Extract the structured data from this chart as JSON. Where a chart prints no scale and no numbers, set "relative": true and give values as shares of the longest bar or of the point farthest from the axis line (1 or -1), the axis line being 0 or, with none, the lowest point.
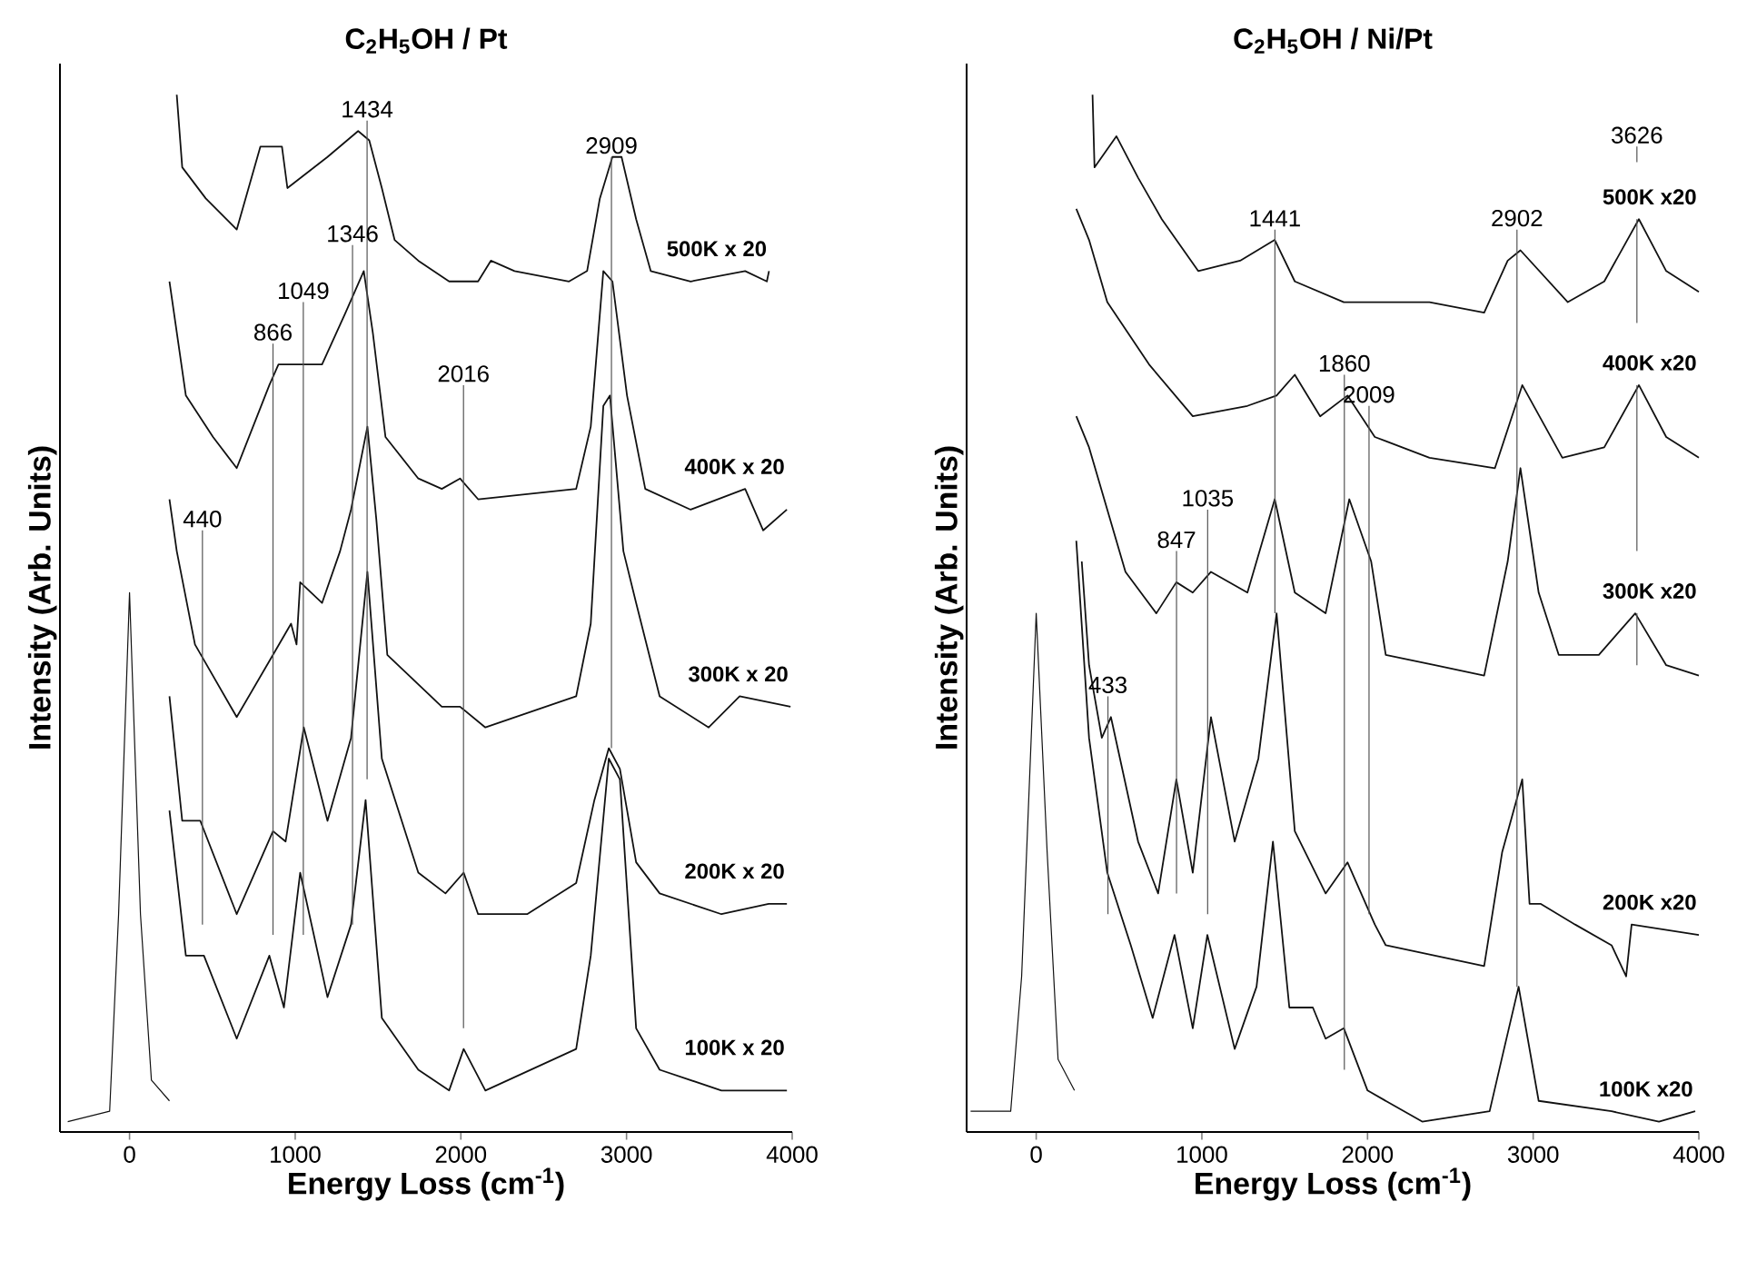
{
  "chart_data": [
    {
      "type": "line",
      "title": "C$_{2}$H$_{5}$OH / Pt",
      "xlabel": "Energy Loss (cm$^{-1}$)",
      "ylabel": "Intensity (Arb. Units)",
      "relative": true,
      "xlim": [
        -420,
        4000
      ],
      "xticks": [
        0,
        1000,
        2000,
        3000,
        4000
      ],
      "series": [
        {
          "name": "500K x 20",
          "color": "#111111",
          "x": [
            285,
            318,
            460,
            647,
            790,
            920,
            953,
            1195,
            1380,
            1447,
            1523,
            1600,
            1743,
            1929,
            2104,
            2181,
            2324,
            2653,
            2762,
            2839,
            2915,
            2970,
            3058,
            3146,
            3387,
            3716,
            3847,
            3860
          ],
          "values": [
            1.0,
            0.93,
            0.9,
            0.87,
            0.95,
            0.95,
            0.91,
            0.94,
            0.965,
            0.956,
            0.91,
            0.86,
            0.84,
            0.82,
            0.82,
            0.84,
            0.83,
            0.82,
            0.83,
            0.9,
            0.94,
            0.94,
            0.88,
            0.83,
            0.82,
            0.83,
            0.82,
            0.83
          ]
        },
        {
          "name": "400K x 20",
          "color": "#111111",
          "x": [
            241,
            340,
            504,
            647,
            844,
            899,
            1162,
            1304,
            1414,
            1469,
            1545,
            1743,
            1885,
            1995,
            2104,
            2696,
            2784,
            2860,
            2915,
            3003,
            3113,
            3387,
            3716,
            3825,
            3968
          ],
          "values": [
            0.82,
            0.71,
            0.67,
            0.64,
            0.72,
            0.74,
            0.74,
            0.79,
            0.83,
            0.77,
            0.67,
            0.63,
            0.62,
            0.63,
            0.61,
            0.62,
            0.68,
            0.83,
            0.82,
            0.71,
            0.62,
            0.6,
            0.62,
            0.58,
            0.6
          ]
        },
        {
          "name": "300K x 20",
          "color": "#111111",
          "x": [
            241,
            285,
            395,
            647,
            866,
            975,
            1008,
            1030,
            1162,
            1271,
            1337,
            1436,
            1490,
            1556,
            1885,
            1995,
            2148,
            2696,
            2784,
            2860,
            2900,
            2981,
            3058,
            3200,
            3496,
            3683,
            3990
          ],
          "values": [
            0.61,
            0.56,
            0.47,
            0.4,
            0.46,
            0.49,
            0.47,
            0.53,
            0.51,
            0.56,
            0.6,
            0.68,
            0.59,
            0.46,
            0.41,
            0.41,
            0.39,
            0.42,
            0.49,
            0.7,
            0.71,
            0.56,
            0.51,
            0.42,
            0.39,
            0.42,
            0.41
          ]
        },
        {
          "name": "200K x 20",
          "color": "#111111",
          "x": [
            241,
            318,
            427,
            647,
            866,
            942,
            1052,
            1195,
            1337,
            1436,
            1523,
            1743,
            1907,
            2017,
            2104,
            2400,
            2696,
            2806,
            2893,
            2960,
            3058,
            3200,
            3573,
            3858,
            3968
          ],
          "values": [
            0.42,
            0.3,
            0.3,
            0.21,
            0.29,
            0.28,
            0.39,
            0.3,
            0.38,
            0.54,
            0.36,
            0.25,
            0.23,
            0.25,
            0.21,
            0.21,
            0.24,
            0.32,
            0.37,
            0.35,
            0.26,
            0.23,
            0.21,
            0.22,
            0.22
          ]
        },
        {
          "name": "100K x 20",
          "color": "#111111",
          "x": [
            241,
            340,
            449,
            647,
            844,
            932,
            1030,
            1195,
            1337,
            1425,
            1523,
            1743,
            1929,
            2017,
            2148,
            2696,
            2784,
            2893,
            2960,
            3058,
            3200,
            3573,
            3968
          ],
          "values": [
            0.31,
            0.17,
            0.17,
            0.09,
            0.17,
            0.12,
            0.25,
            0.13,
            0.2,
            0.32,
            0.11,
            0.06,
            0.04,
            0.08,
            0.04,
            0.08,
            0.17,
            0.36,
            0.34,
            0.1,
            0.06,
            0.04,
            0.04
          ]
        },
        {
          "color": "#111111",
          "x": [
            -373,
            -120,
            -66,
            0,
            66,
            132,
            241
          ],
          "values": [
            0.01,
            0.02,
            0.21,
            0.52,
            0.21,
            0.05,
            0.03
          ]
        },
        {
          "color": "#555555",
          "x": [
            1434,
            1434
          ],
          "values": [
            0.975,
            0.34
          ]
        },
        {
          "color": "#555555",
          "x": [
            1346,
            1346
          ],
          "values": [
            0.855,
            0.2
          ]
        },
        {
          "color": "#555555",
          "x": [
            1049,
            1049
          ],
          "values": [
            0.8,
            0.19
          ]
        },
        {
          "color": "#555555",
          "x": [
            866,
            866
          ],
          "values": [
            0.76,
            0.19
          ]
        },
        {
          "color": "#555555",
          "x": [
            440,
            440
          ],
          "values": [
            0.58,
            0.2
          ]
        },
        {
          "color": "#555555",
          "x": [
            2016,
            2016
          ],
          "values": [
            0.72,
            0.1
          ]
        },
        {
          "color": "#555555",
          "x": [
            2909,
            2909
          ],
          "values": [
            0.94,
            0.37
          ]
        }
      ],
      "annotations": [
        {
          "text": "1434",
          "x": 1434,
          "y": 0.975
        },
        {
          "text": "1346",
          "x": 1346,
          "y": 0.855
        },
        {
          "text": "1049",
          "x": 1049,
          "y": 0.8
        },
        {
          "text": "866",
          "x": 866,
          "y": 0.76
        },
        {
          "text": "440",
          "x": 440,
          "y": 0.58
        },
        {
          "text": "2016",
          "x": 2016,
          "y": 0.72
        },
        {
          "text": "2909",
          "x": 2909,
          "y": 0.94
        }
      ]
    },
    {
      "type": "line",
      "title": "C$_{2}$H$_{5}$OH / Ni/Pt",
      "xlabel": "Energy Loss (cm$^{-1}$)",
      "ylabel": "Intensity (Arb. Units)",
      "relative": true,
      "xlim": [
        -420,
        4000
      ],
      "xticks": [
        0,
        1000,
        2000,
        3000,
        4000
      ],
      "series": [
        {
          "name": "500K x20",
          "color": "#111111",
          "x": [
            340,
            352,
            484,
            615,
            758,
            978,
            1231,
            1440,
            1561,
            1857,
            2374,
            2704,
            2846,
            2923,
            3209,
            3429,
            3638,
            3803,
            4000
          ],
          "values": [
            1.0,
            0.93,
            0.96,
            0.92,
            0.88,
            0.83,
            0.84,
            0.86,
            0.82,
            0.8,
            0.8,
            0.79,
            0.84,
            0.85,
            0.8,
            0.82,
            0.88,
            0.83,
            0.81
          ]
        },
        {
          "name": "400K x20",
          "color": "#111111",
          "x": [
            242,
            319,
            429,
            681,
            945,
            1275,
            1451,
            1561,
            1714,
            1879,
            2044,
            2374,
            2769,
            2934,
            3176,
            3429,
            3638,
            3803,
            4000
          ],
          "values": [
            0.89,
            0.86,
            0.8,
            0.74,
            0.69,
            0.7,
            0.71,
            0.73,
            0.69,
            0.71,
            0.67,
            0.65,
            0.64,
            0.72,
            0.65,
            0.66,
            0.72,
            0.67,
            0.65
          ]
        },
        {
          "name": "300K x20",
          "color": "#111111",
          "x": [
            242,
            319,
            539,
            725,
            846,
            945,
            1055,
            1275,
            1440,
            1561,
            1747,
            1890,
            2022,
            2110,
            2407,
            2704,
            2846,
            2923,
            3033,
            3154,
            3396,
            3616,
            3803,
            4000
          ],
          "values": [
            0.69,
            0.66,
            0.54,
            0.5,
            0.53,
            0.52,
            0.54,
            0.52,
            0.61,
            0.52,
            0.5,
            0.61,
            0.55,
            0.46,
            0.45,
            0.44,
            0.55,
            0.64,
            0.52,
            0.46,
            0.46,
            0.5,
            0.45,
            0.44
          ]
        },
        {
          "name": "200K x20",
          "color": "#111111",
          "x": [
            275,
            319,
            396,
            451,
            615,
            736,
            846,
            945,
            1055,
            1198,
            1341,
            1451,
            1561,
            1747,
            1879,
            2044,
            2110,
            2704,
            2813,
            2934,
            2978,
            3044,
            3253,
            3473,
            3561,
            3594,
            4000
          ],
          "values": [
            0.55,
            0.45,
            0.38,
            0.4,
            0.28,
            0.23,
            0.34,
            0.25,
            0.4,
            0.28,
            0.36,
            0.5,
            0.29,
            0.23,
            0.26,
            0.2,
            0.18,
            0.16,
            0.27,
            0.34,
            0.22,
            0.22,
            0.2,
            0.18,
            0.15,
            0.2,
            0.19
          ]
        },
        {
          "name": "100K x20",
          "color": "#111111",
          "x": [
            242,
            319,
            429,
            571,
            703,
            835,
            945,
            1033,
            1198,
            1330,
            1429,
            1528,
            1670,
            1747,
            1857,
            2000,
            2330,
            2737,
            2824,
            2912,
            3033,
            3473,
            3759,
            3978
          ],
          "values": [
            0.57,
            0.38,
            0.25,
            0.18,
            0.11,
            0.19,
            0.1,
            0.19,
            0.08,
            0.14,
            0.28,
            0.12,
            0.12,
            0.09,
            0.1,
            0.04,
            0.01,
            0.02,
            0.08,
            0.14,
            0.03,
            0.02,
            0.01,
            0.02
          ]
        },
        {
          "color": "#111111",
          "x": [
            -396,
            -154,
            -88,
            0,
            66,
            132,
            231
          ],
          "values": [
            0.02,
            0.02,
            0.15,
            0.5,
            0.27,
            0.07,
            0.04
          ]
        },
        {
          "color": "#555555",
          "x": [
            1441,
            1441
          ],
          "values": [
            0.87,
            0.5
          ]
        },
        {
          "color": "#555555",
          "x": [
            2902,
            2902
          ],
          "values": [
            0.87,
            0.14
          ]
        },
        {
          "color": "#555555",
          "x": [
            3626,
            3626
          ],
          "values": [
            0.95,
            0.935
          ]
        },
        {
          "color": "#555555",
          "x": [
            3626,
            3626
          ],
          "values": [
            0.88,
            0.78
          ]
        },
        {
          "color": "#555555",
          "x": [
            3626,
            3626
          ],
          "values": [
            0.72,
            0.56
          ]
        },
        {
          "color": "#555555",
          "x": [
            3626,
            3626
          ],
          "values": [
            0.5,
            0.45
          ]
        },
        {
          "color": "#555555",
          "x": [
            1860,
            1860
          ],
          "values": [
            0.73,
            0.06
          ]
        },
        {
          "color": "#555555",
          "x": [
            2009,
            2009
          ],
          "values": [
            0.7,
            0.21
          ]
        },
        {
          "color": "#555555",
          "x": [
            1035,
            1035
          ],
          "values": [
            0.6,
            0.21
          ]
        },
        {
          "color": "#555555",
          "x": [
            847,
            847
          ],
          "values": [
            0.56,
            0.23
          ]
        },
        {
          "color": "#555555",
          "x": [
            433,
            433
          ],
          "values": [
            0.42,
            0.21
          ]
        }
      ],
      "annotations": [
        {
          "text": "1441",
          "x": 1441,
          "y": 0.87
        },
        {
          "text": "2902",
          "x": 2902,
          "y": 0.87
        },
        {
          "text": "3626",
          "x": 3626,
          "y": 0.95
        },
        {
          "text": "1860",
          "x": 1860,
          "y": 0.73
        },
        {
          "text": "2009",
          "x": 2009,
          "y": 0.7
        },
        {
          "text": "1035",
          "x": 1035,
          "y": 0.6
        },
        {
          "text": "847",
          "x": 847,
          "y": 0.56
        },
        {
          "text": "433",
          "x": 433,
          "y": 0.42
        }
      ]
    }
  ]
}
